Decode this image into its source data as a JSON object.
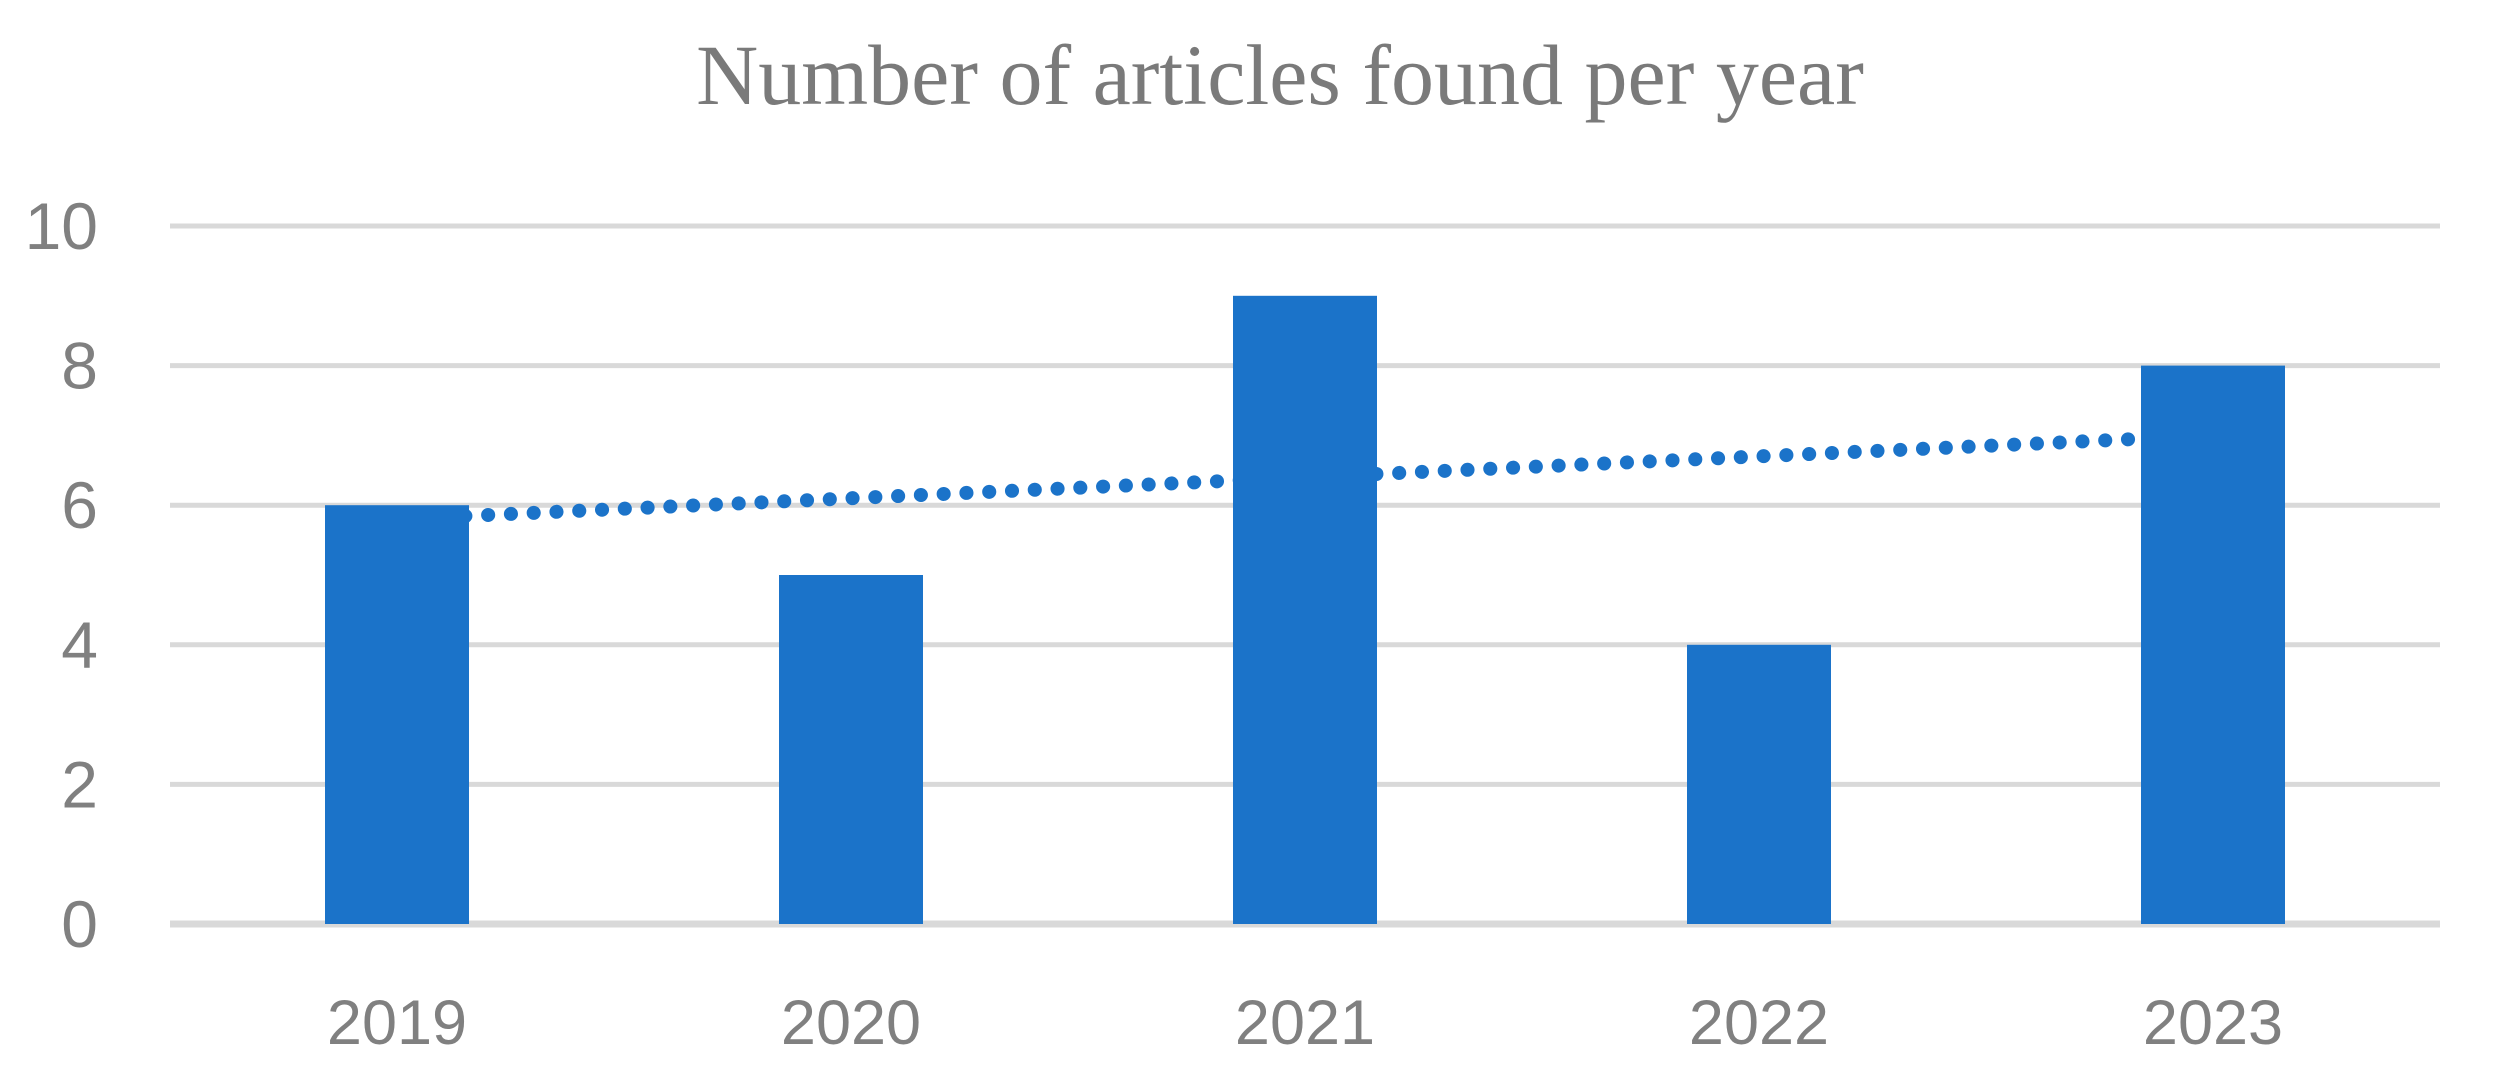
{
  "colors": {
    "bar": "#1b73c9",
    "trendline": "#1b73c9",
    "gridline": "#d9d9d9",
    "axis_text": "#808080",
    "title_text": "#7a7a7a",
    "background": "#ffffff"
  },
  "chart_data": {
    "type": "bar",
    "title": "Number of articles found per year",
    "xlabel": "",
    "ylabel": "",
    "categories": [
      "2019",
      "2020",
      "2021",
      "2022",
      "2023"
    ],
    "values": [
      6,
      5,
      9,
      4,
      8
    ],
    "ylim": [
      0,
      10
    ],
    "yticks": [
      0,
      2,
      4,
      6,
      8,
      10
    ],
    "grid": "horizontal",
    "legend": "none",
    "bar_orientation": "vertical",
    "trendline": {
      "type": "linear",
      "style": "dotted",
      "start_value": 5.8,
      "end_value": 7.0,
      "drawn_behind_bars": true
    }
  }
}
